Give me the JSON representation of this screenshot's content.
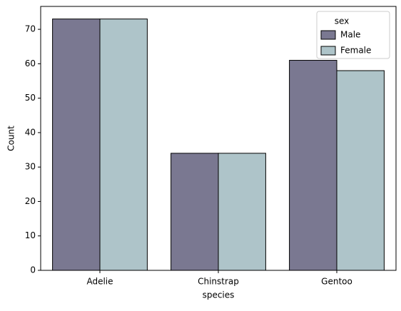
{
  "chart_data": {
    "type": "bar",
    "x_label": "species",
    "y_label": "Count",
    "categories": [
      "Adelie",
      "Chinstrap",
      "Gentoo"
    ],
    "series": [
      {
        "name": "Male",
        "color": "#7a7891",
        "values": [
          73,
          34,
          61
        ]
      },
      {
        "name": "Female",
        "color": "#aec4c9",
        "values": [
          73,
          34,
          58
        ]
      }
    ],
    "legend_title": "sex",
    "legend_position": "upper-right",
    "ylim": [
      0,
      76.65
    ],
    "yticks": [
      0,
      10,
      20,
      30,
      40,
      50,
      60,
      70
    ]
  }
}
